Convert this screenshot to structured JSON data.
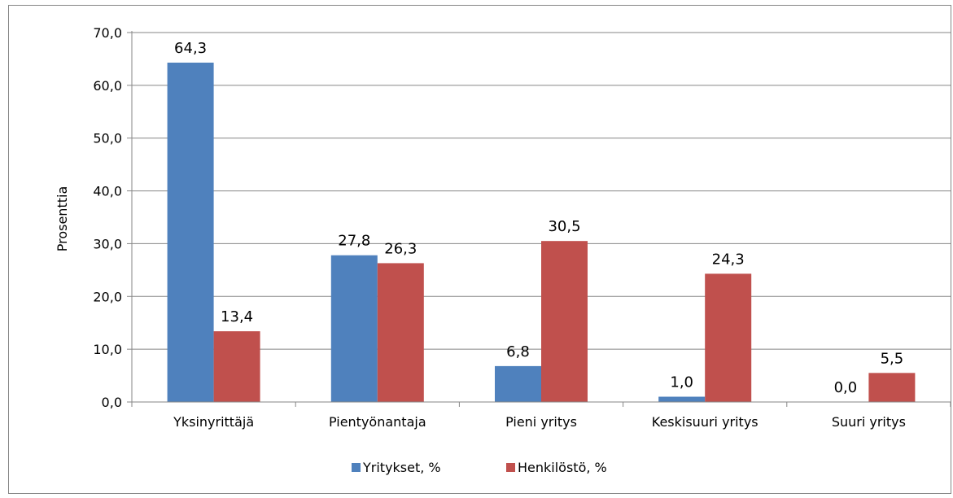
{
  "chart_data": {
    "type": "bar",
    "title": "",
    "xlabel": "",
    "ylabel": "Prosenttia",
    "ylim": [
      0,
      70
    ],
    "yticks": [
      "0,0",
      "10,0",
      "20,0",
      "30,0",
      "40,0",
      "50,0",
      "60,0",
      "70,0"
    ],
    "grid": true,
    "legend_position": "bottom",
    "categories": [
      "Yksinyrittäjä",
      "Pientyönantaja",
      "Pieni yritys",
      "Keskisuuri yritys",
      "Suuri yritys"
    ],
    "series": [
      {
        "name": "Yritykset, %",
        "color": "#4f81bd",
        "values": [
          64.3,
          27.8,
          6.8,
          1.0,
          0.0
        ],
        "labels": [
          "64,3",
          "27,8",
          "6,8",
          "1,0",
          "0,0"
        ]
      },
      {
        "name": "Henkilöstö, %",
        "color": "#c0504d",
        "values": [
          13.4,
          26.3,
          30.5,
          24.3,
          5.5
        ],
        "labels": [
          "13,4",
          "26,3",
          "30,5",
          "24,3",
          "5,5"
        ]
      }
    ]
  }
}
